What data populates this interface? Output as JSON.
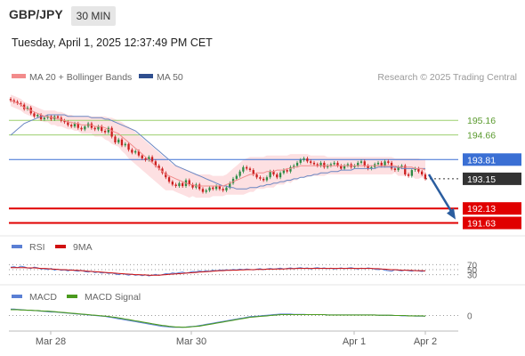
{
  "header": {
    "symbol": "GBP/JPY",
    "timeframe": "30 MIN",
    "datetime": "Tuesday, April 1, 2025 12:37:49 PM CET"
  },
  "legend": {
    "bb": "MA 20 + Bollinger Bands",
    "ma50": "MA 50",
    "copyright": "Research © 2025 Trading Central"
  },
  "colors": {
    "bb_band": "#fcd5d8",
    "ma20": "#f28b8b",
    "ma50": "#6a86c2",
    "resistance": "#9ccf6f",
    "pivot": "#3a6fd4",
    "support": "#e00000",
    "candle_up": "#2e8b45",
    "candle_down": "#cc1f1f",
    "arrow": "#2a5d9f",
    "last_price": "#333333",
    "rsi": "#5a7fd4",
    "rsi_ma": "#d01010",
    "macd": "#5a7fd4",
    "macd_signal": "#4a9a1e"
  },
  "chart_data": [
    {
      "type": "candlestick",
      "title": "GBP/JPY",
      "timeframe": "30 MIN",
      "x_ticks": [
        "Mar 28",
        "Mar 30",
        "Apr 1",
        "Apr 2"
      ],
      "ylim": [
        191.4,
        196.3
      ],
      "levels": [
        {
          "label": "195.16",
          "value": 195.16,
          "kind": "resistance"
        },
        {
          "label": "194.66",
          "value": 194.66,
          "kind": "resistance"
        },
        {
          "label": "193.81",
          "value": 193.81,
          "kind": "pivot"
        },
        {
          "label": "193.15",
          "value": 193.15,
          "kind": "last"
        },
        {
          "label": "192.13",
          "value": 192.13,
          "kind": "support"
        },
        {
          "label": "191.63",
          "value": 191.63,
          "kind": "support"
        }
      ],
      "forecast_arrow": {
        "from": 193.3,
        "to": 191.75
      },
      "close": [
        195.85,
        195.8,
        195.75,
        195.7,
        195.55,
        195.6,
        195.4,
        195.3,
        195.35,
        195.2,
        195.25,
        195.3,
        195.2,
        195.3,
        195.25,
        195.15,
        195.1,
        195.0,
        194.95,
        195.05,
        194.9,
        194.85,
        194.95,
        195.05,
        194.9,
        194.85,
        194.95,
        194.8,
        194.75,
        194.9,
        194.6,
        194.4,
        194.5,
        194.3,
        194.35,
        194.15,
        194.05,
        194.1,
        193.95,
        193.85,
        193.8,
        193.9,
        193.75,
        193.6,
        193.5,
        193.35,
        193.2,
        193.05,
        192.95,
        192.9,
        193.0,
        192.9,
        193.1,
        192.95,
        192.85,
        192.95,
        192.8,
        192.7,
        192.75,
        192.85,
        192.8,
        192.9,
        192.8,
        192.75,
        192.85,
        193.0,
        193.15,
        193.25,
        193.4,
        193.55,
        193.5,
        193.45,
        193.3,
        193.2,
        193.15,
        193.1,
        193.2,
        193.4,
        193.3,
        193.2,
        193.35,
        193.45,
        193.4,
        193.55,
        193.6,
        193.7,
        193.8,
        193.85,
        193.75,
        193.7,
        193.65,
        193.6,
        193.7,
        193.55,
        193.6,
        193.65,
        193.7,
        193.6,
        193.5,
        193.6,
        193.65,
        193.55,
        193.6,
        193.7,
        193.75,
        193.6,
        193.5,
        193.55,
        193.65,
        193.7,
        193.6,
        193.75,
        193.7,
        193.5,
        193.45,
        193.55,
        193.6,
        193.3,
        193.25,
        193.45,
        193.5,
        193.4,
        193.3,
        193.15
      ],
      "bb_upper": [
        196.05,
        196.0,
        195.95,
        195.9,
        195.8,
        195.75,
        195.7,
        195.65,
        195.6,
        195.55,
        195.5,
        195.5,
        195.5,
        195.5,
        195.45,
        195.45,
        195.4,
        195.35,
        195.35,
        195.3,
        195.3,
        195.3,
        195.3,
        195.3,
        195.3,
        195.3,
        195.3,
        195.3,
        195.3,
        195.25,
        195.25,
        195.2,
        195.15,
        195.1,
        195.0,
        194.95,
        194.85,
        194.75,
        194.65,
        194.55,
        194.45,
        194.35,
        194.25,
        194.15,
        194.05,
        193.95,
        193.85,
        193.75,
        193.65,
        193.6,
        193.55,
        193.5,
        193.45,
        193.4,
        193.35,
        193.3,
        193.3,
        193.3,
        193.3,
        193.3,
        193.25,
        193.25,
        193.25,
        193.25,
        193.3,
        193.4,
        193.5,
        193.6,
        193.7,
        193.8,
        193.85,
        193.9,
        193.9,
        193.9,
        193.9,
        193.9,
        193.95,
        193.95,
        193.95,
        193.95,
        193.95,
        193.95,
        193.95,
        194.0,
        194.0,
        194.0,
        194.0,
        194.0,
        194.0,
        193.95,
        193.95,
        193.95,
        193.95,
        193.95,
        193.9,
        193.9,
        193.9,
        193.9,
        193.9,
        193.9,
        193.9,
        193.9,
        193.9,
        193.9,
        193.9,
        193.9,
        193.9,
        193.9,
        193.9,
        193.9,
        193.9,
        193.9,
        193.9,
        193.9,
        193.85,
        193.85,
        193.85,
        193.85,
        193.85,
        193.85,
        193.85,
        193.85,
        193.8,
        193.8
      ],
      "ma20": [
        195.85,
        195.8,
        195.75,
        195.7,
        195.6,
        195.55,
        195.5,
        195.45,
        195.4,
        195.35,
        195.3,
        195.3,
        195.25,
        195.25,
        195.2,
        195.2,
        195.15,
        195.1,
        195.1,
        195.05,
        195.05,
        195.0,
        195.0,
        195.0,
        195.0,
        194.95,
        194.95,
        194.95,
        194.9,
        194.85,
        194.8,
        194.75,
        194.7,
        194.6,
        194.5,
        194.4,
        194.3,
        194.2,
        194.1,
        194.0,
        193.9,
        193.8,
        193.7,
        193.6,
        193.5,
        193.4,
        193.3,
        193.25,
        193.2,
        193.15,
        193.1,
        193.05,
        193.0,
        192.95,
        192.95,
        192.9,
        192.9,
        192.9,
        192.9,
        192.9,
        192.9,
        192.9,
        192.9,
        192.9,
        192.95,
        193.0,
        193.05,
        193.1,
        193.15,
        193.2,
        193.25,
        193.3,
        193.3,
        193.35,
        193.35,
        193.35,
        193.4,
        193.4,
        193.4,
        193.45,
        193.45,
        193.45,
        193.5,
        193.5,
        193.55,
        193.55,
        193.6,
        193.6,
        193.6,
        193.6,
        193.6,
        193.6,
        193.6,
        193.6,
        193.6,
        193.6,
        193.6,
        193.6,
        193.6,
        193.6,
        193.6,
        193.6,
        193.6,
        193.6,
        193.6,
        193.6,
        193.6,
        193.6,
        193.6,
        193.6,
        193.6,
        193.6,
        193.6,
        193.6,
        193.6,
        193.55,
        193.55,
        193.55,
        193.55,
        193.55,
        193.5,
        193.5,
        193.5,
        193.45
      ],
      "bb_lower": [
        195.65,
        195.6,
        195.55,
        195.5,
        195.4,
        195.35,
        195.3,
        195.25,
        195.2,
        195.15,
        195.1,
        195.1,
        195.0,
        195.0,
        194.95,
        194.95,
        194.9,
        194.85,
        194.85,
        194.8,
        194.8,
        194.7,
        194.7,
        194.7,
        194.7,
        194.6,
        194.6,
        194.6,
        194.5,
        194.45,
        194.35,
        194.3,
        194.25,
        194.1,
        194.0,
        193.85,
        193.75,
        193.65,
        193.55,
        193.45,
        193.35,
        193.25,
        193.15,
        193.05,
        192.95,
        192.85,
        192.75,
        192.75,
        192.75,
        192.7,
        192.65,
        192.6,
        192.55,
        192.5,
        192.55,
        192.5,
        192.5,
        192.5,
        192.5,
        192.5,
        192.55,
        192.55,
        192.55,
        192.55,
        192.6,
        192.6,
        192.6,
        192.6,
        192.6,
        192.6,
        192.65,
        192.7,
        192.7,
        192.8,
        192.8,
        192.8,
        192.85,
        192.85,
        192.85,
        192.95,
        192.95,
        192.95,
        193.05,
        193.0,
        193.1,
        193.1,
        193.2,
        193.2,
        193.2,
        193.25,
        193.25,
        193.25,
        193.25,
        193.25,
        193.3,
        193.3,
        193.3,
        193.3,
        193.3,
        193.3,
        193.3,
        193.3,
        193.3,
        193.3,
        193.3,
        193.3,
        193.3,
        193.3,
        193.3,
        193.3,
        193.3,
        193.3,
        193.3,
        193.3,
        193.35,
        193.25,
        193.25,
        193.25,
        193.25,
        193.25,
        193.15,
        193.15,
        193.2,
        193.1
      ],
      "ma50": [
        194.65,
        194.75,
        194.85,
        194.95,
        195.05,
        195.1,
        195.15,
        195.2,
        195.25,
        195.3,
        195.3,
        195.35,
        195.35,
        195.35,
        195.35,
        195.35,
        195.35,
        195.3,
        195.3,
        195.3,
        195.3,
        195.3,
        195.3,
        195.3,
        195.25,
        195.25,
        195.25,
        195.25,
        195.2,
        195.2,
        195.15,
        195.1,
        195.05,
        195.0,
        194.95,
        194.9,
        194.85,
        194.8,
        194.7,
        194.6,
        194.5,
        194.4,
        194.3,
        194.2,
        194.1,
        194.0,
        193.9,
        193.8,
        193.7,
        193.6,
        193.55,
        193.5,
        193.45,
        193.4,
        193.35,
        193.3,
        193.25,
        193.2,
        193.15,
        193.1,
        193.05,
        193.0,
        192.95,
        192.9,
        192.9,
        192.85,
        192.85,
        192.8,
        192.8,
        192.8,
        192.8,
        192.85,
        192.85,
        192.85,
        192.9,
        192.9,
        192.95,
        192.95,
        193.0,
        193.0,
        193.05,
        193.05,
        193.1,
        193.1,
        193.15,
        193.15,
        193.2,
        193.2,
        193.25,
        193.25,
        193.3,
        193.3,
        193.35,
        193.35,
        193.35,
        193.4,
        193.4,
        193.4,
        193.45,
        193.45,
        193.45,
        193.45,
        193.5,
        193.5,
        193.5,
        193.5,
        193.5,
        193.5,
        193.5,
        193.55,
        193.55,
        193.55,
        193.55,
        193.55,
        193.55,
        193.55,
        193.5,
        193.5,
        193.5,
        193.5,
        193.5,
        193.5,
        193.5,
        193.5
      ]
    },
    {
      "type": "line",
      "panel": "RSI",
      "legend": [
        "RSI",
        "9MA"
      ],
      "levels": [
        "70",
        "50",
        "30"
      ],
      "ylim": [
        0,
        100
      ],
      "rsi": [
        60,
        62,
        58,
        64,
        61,
        57,
        55,
        60,
        58,
        52,
        54,
        50,
        55,
        48,
        52,
        47,
        49,
        45,
        50,
        46,
        44,
        48,
        42,
        40,
        44,
        38,
        41,
        36,
        39,
        35,
        37,
        33,
        30,
        34,
        31,
        28,
        32,
        27,
        30,
        26,
        29,
        25,
        28,
        31,
        27,
        30,
        34,
        33,
        37,
        35,
        38,
        40,
        36,
        39,
        43,
        41,
        45,
        42,
        46,
        44,
        48,
        45,
        49,
        47,
        50,
        48,
        51,
        49,
        52,
        50,
        53,
        51,
        49,
        52,
        54,
        50,
        53,
        55,
        52,
        54,
        56,
        53,
        55,
        57,
        54,
        56,
        58,
        55,
        57,
        53,
        56,
        58,
        55,
        57,
        54,
        56,
        53,
        55,
        57,
        54,
        56,
        58,
        55,
        53,
        56,
        54,
        57,
        55,
        52,
        50,
        53,
        48,
        46,
        44,
        50,
        47,
        45,
        49,
        46,
        44,
        47,
        45,
        43,
        46
      ],
      "ma9": [
        58,
        58,
        58,
        58,
        58,
        57,
        57,
        57,
        56,
        55,
        55,
        54,
        53,
        52,
        51,
        50,
        50,
        49,
        48,
        48,
        47,
        46,
        45,
        44,
        43,
        42,
        41,
        40,
        39,
        38,
        37,
        36,
        35,
        34,
        33,
        32,
        31,
        30,
        30,
        29,
        29,
        28,
        28,
        28,
        28,
        29,
        30,
        31,
        32,
        33,
        34,
        35,
        36,
        37,
        38,
        39,
        40,
        41,
        42,
        43,
        44,
        45,
        46,
        46,
        47,
        47,
        48,
        48,
        49,
        49,
        50,
        50,
        50,
        51,
        51,
        51,
        52,
        52,
        52,
        53,
        53,
        53,
        54,
        54,
        54,
        55,
        55,
        55,
        55,
        55,
        55,
        55,
        55,
        55,
        55,
        55,
        55,
        55,
        55,
        55,
        55,
        55,
        55,
        55,
        55,
        55,
        55,
        55,
        54,
        54,
        53,
        52,
        51,
        50,
        50,
        49,
        48,
        48,
        47,
        47,
        46,
        46,
        46,
        45
      ]
    },
    {
      "type": "line",
      "panel": "MACD",
      "legend": [
        "MACD",
        "MACD Signal"
      ],
      "levels": [
        "0"
      ],
      "ylim": [
        -0.5,
        0.35
      ],
      "macd": [
        0.22,
        0.22,
        0.21,
        0.2,
        0.19,
        0.18,
        0.18,
        0.17,
        0.16,
        0.15,
        0.14,
        0.13,
        0.12,
        0.12,
        0.11,
        0.1,
        0.09,
        0.08,
        0.07,
        0.06,
        0.05,
        0.04,
        0.03,
        0.02,
        0.01,
        0.0,
        -0.01,
        -0.02,
        -0.03,
        -0.05,
        -0.07,
        -0.09,
        -0.11,
        -0.13,
        -0.15,
        -0.17,
        -0.19,
        -0.21,
        -0.23,
        -0.25,
        -0.27,
        -0.29,
        -0.31,
        -0.33,
        -0.35,
        -0.37,
        -0.38,
        -0.39,
        -0.4,
        -0.4,
        -0.4,
        -0.4,
        -0.39,
        -0.38,
        -0.37,
        -0.36,
        -0.34,
        -0.32,
        -0.3,
        -0.28,
        -0.26,
        -0.24,
        -0.22,
        -0.2,
        -0.18,
        -0.16,
        -0.14,
        -0.12,
        -0.1,
        -0.08,
        -0.06,
        -0.04,
        -0.03,
        -0.02,
        -0.01,
        0.0,
        0.01,
        0.02,
        0.03,
        0.04,
        0.05,
        0.05,
        0.05,
        0.05,
        0.04,
        0.04,
        0.04,
        0.04,
        0.03,
        0.03,
        0.03,
        0.03,
        0.03,
        0.03,
        0.02,
        0.02,
        0.02,
        0.02,
        0.02,
        0.02,
        0.02,
        0.02,
        0.02,
        0.02,
        0.02,
        0.02,
        0.02,
        0.02,
        0.02,
        0.01,
        0.01,
        0.01,
        0.01,
        0.0,
        0.0,
        0.0,
        -0.01,
        -0.01,
        -0.01,
        -0.01,
        -0.02,
        -0.02,
        -0.02,
        -0.02
      ],
      "signal": [
        0.2,
        0.2,
        0.2,
        0.19,
        0.19,
        0.18,
        0.18,
        0.17,
        0.17,
        0.16,
        0.15,
        0.15,
        0.14,
        0.13,
        0.12,
        0.11,
        0.1,
        0.09,
        0.08,
        0.07,
        0.06,
        0.05,
        0.04,
        0.03,
        0.02,
        0.01,
        0.0,
        -0.01,
        -0.02,
        -0.03,
        -0.05,
        -0.06,
        -0.08,
        -0.1,
        -0.12,
        -0.14,
        -0.16,
        -0.18,
        -0.2,
        -0.22,
        -0.24,
        -0.26,
        -0.28,
        -0.3,
        -0.32,
        -0.34,
        -0.35,
        -0.37,
        -0.38,
        -0.39,
        -0.39,
        -0.4,
        -0.4,
        -0.39,
        -0.38,
        -0.37,
        -0.36,
        -0.34,
        -0.32,
        -0.3,
        -0.28,
        -0.26,
        -0.24,
        -0.22,
        -0.2,
        -0.18,
        -0.16,
        -0.14,
        -0.12,
        -0.1,
        -0.08,
        -0.06,
        -0.05,
        -0.04,
        -0.03,
        -0.02,
        -0.01,
        0.0,
        0.01,
        0.02,
        0.03,
        0.03,
        0.03,
        0.03,
        0.03,
        0.03,
        0.03,
        0.03,
        0.03,
        0.03,
        0.03,
        0.03,
        0.03,
        0.03,
        0.02,
        0.02,
        0.02,
        0.02,
        0.02,
        0.02,
        0.02,
        0.02,
        0.02,
        0.02,
        0.02,
        0.02,
        0.02,
        0.02,
        0.02,
        0.01,
        0.01,
        0.01,
        0.01,
        0.01,
        0.0,
        0.0,
        0.0,
        0.0,
        -0.01,
        -0.01,
        -0.01,
        -0.01,
        -0.01,
        -0.02
      ]
    }
  ]
}
